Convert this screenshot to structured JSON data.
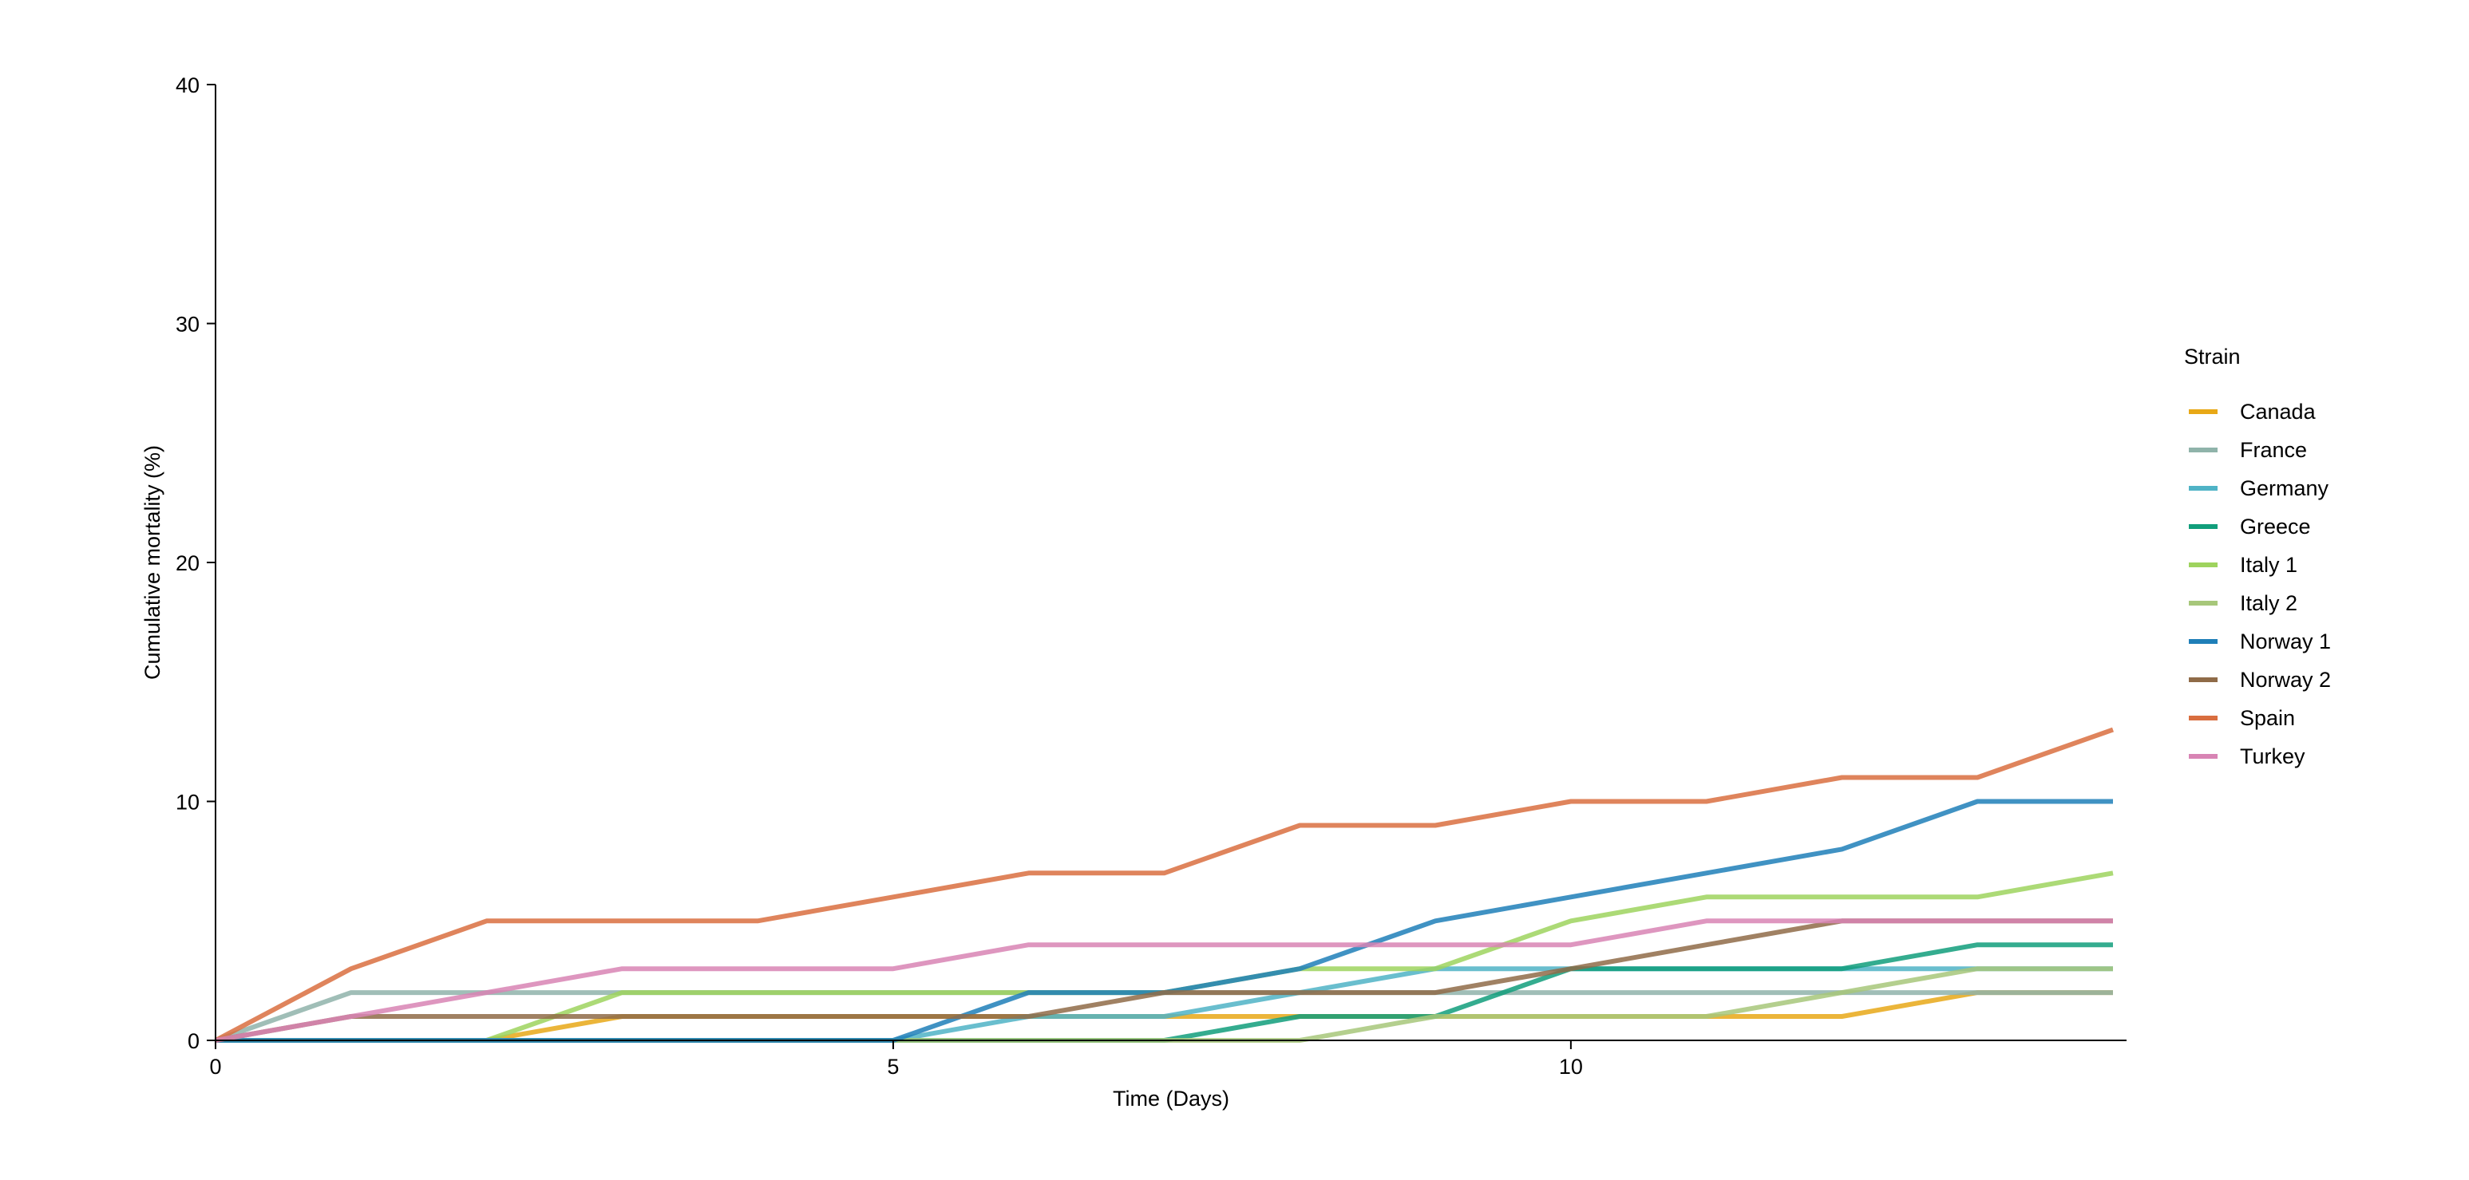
{
  "chart_data": {
    "type": "line",
    "title": "",
    "xlabel": "Time (Days)",
    "ylabel": "Cumulative mortality (%)",
    "xlim": [
      0,
      14.1
    ],
    "ylim": [
      0,
      40
    ],
    "xticks": [
      0,
      5,
      10
    ],
    "yticks": [
      0,
      10,
      20,
      30,
      40
    ],
    "grid": false,
    "legend": {
      "title": "Strain",
      "position": "right"
    },
    "x": [
      0,
      1,
      2,
      3,
      4,
      5,
      6,
      7,
      8,
      9,
      10,
      11,
      12,
      13,
      14
    ],
    "series": [
      {
        "name": "Canada",
        "color": "#E8A817",
        "values": [
          0,
          0,
          0,
          1,
          1,
          1,
          1,
          1,
          1,
          1,
          1,
          1,
          1,
          2,
          2
        ]
      },
      {
        "name": "France",
        "color": "#8FB3AA",
        "values": [
          0,
          2,
          2,
          2,
          2,
          2,
          2,
          2,
          2,
          2,
          2,
          2,
          2,
          2,
          2
        ]
      },
      {
        "name": "Germany",
        "color": "#4FB3C6",
        "values": [
          0,
          0,
          0,
          0,
          0,
          0,
          1,
          1,
          2,
          3,
          3,
          3,
          3,
          3,
          3
        ]
      },
      {
        "name": "Greece",
        "color": "#119E7B",
        "values": [
          0,
          0,
          0,
          0,
          0,
          0,
          0,
          0,
          1,
          1,
          3,
          3,
          3,
          4,
          4
        ]
      },
      {
        "name": "Italy 1",
        "color": "#9ED35E",
        "values": [
          0,
          0,
          0,
          2,
          2,
          2,
          2,
          2,
          3,
          3,
          5,
          6,
          6,
          6,
          7
        ]
      },
      {
        "name": "Italy 2",
        "color": "#A7C77A",
        "values": [
          0,
          0,
          0,
          0,
          0,
          0,
          0,
          0,
          0,
          1,
          1,
          1,
          2,
          3,
          3
        ]
      },
      {
        "name": "Norway 1",
        "color": "#1F7FB8",
        "values": [
          0,
          0,
          0,
          0,
          0,
          0,
          2,
          2,
          3,
          5,
          6,
          7,
          8,
          10,
          10
        ]
      },
      {
        "name": "Norway 2",
        "color": "#8F6B48",
        "values": [
          0,
          1,
          1,
          1,
          1,
          1,
          1,
          2,
          2,
          2,
          3,
          4,
          5,
          5,
          5
        ]
      },
      {
        "name": "Spain",
        "color": "#D96E3F",
        "values": [
          0,
          3,
          5,
          5,
          5,
          6,
          7,
          7,
          9,
          9,
          10,
          10,
          11,
          11,
          13
        ]
      },
      {
        "name": "Turkey",
        "color": "#D884B4",
        "values": [
          0,
          1,
          2,
          3,
          3,
          3,
          4,
          4,
          4,
          4,
          4,
          5,
          5,
          5,
          5
        ]
      }
    ]
  }
}
